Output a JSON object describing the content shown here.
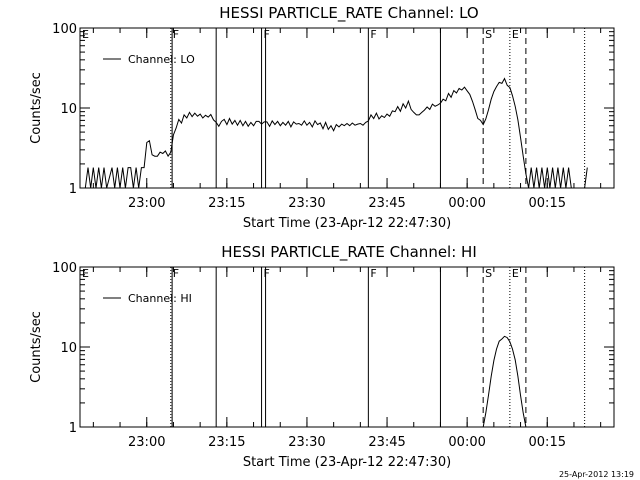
{
  "footer": {
    "date_stamp": "25-Apr-2012 13:19"
  },
  "colors": {
    "background": "#ffffff",
    "foreground": "#000000"
  },
  "chart_data": [
    {
      "type": "line",
      "title": "HESSI PARTICLE_RATE Channel: LO",
      "xlabel": "Start Time (23-Apr-12 22:47:30)",
      "ylabel": "Counts/sec",
      "y_scale": "log",
      "ylim": [
        1,
        100
      ],
      "y_ticks": [
        {
          "v": 1,
          "label": "1"
        },
        {
          "v": 10,
          "label": "10"
        },
        {
          "v": 100,
          "label": "100"
        }
      ],
      "xlim": [
        "22:47:30",
        "00:27:30"
      ],
      "x_ticks": [
        {
          "t": "23:00",
          "label": "23:00"
        },
        {
          "t": "23:15",
          "label": "23:15"
        },
        {
          "t": "23:30",
          "label": "23:30"
        },
        {
          "t": "23:45",
          "label": "23:45"
        },
        {
          "t": "00:00",
          "label": "00:00"
        },
        {
          "t": "00:15",
          "label": "00:15"
        }
      ],
      "legend": {
        "position": "top-left",
        "entries": [
          "Channel: LO"
        ]
      },
      "markers": [
        {
          "t": "22:47:30",
          "style": "dotted",
          "label": "E"
        },
        {
          "t": "23:04:30",
          "style": "dotted",
          "label": "F"
        },
        {
          "t": "23:04:45",
          "style": "solid",
          "label": ""
        },
        {
          "t": "23:13:00",
          "style": "solid",
          "label": ""
        },
        {
          "t": "23:21:30",
          "style": "solid",
          "label": "F"
        },
        {
          "t": "23:22:15",
          "style": "solid",
          "label": ""
        },
        {
          "t": "23:41:30",
          "style": "solid",
          "label": "F"
        },
        {
          "t": "23:55:00",
          "style": "solid",
          "label": ""
        },
        {
          "t": "00:03:00",
          "style": "dashed",
          "label": "S"
        },
        {
          "t": "00:08:00",
          "style": "dotted",
          "label": "E"
        },
        {
          "t": "00:11:00",
          "style": "dashed",
          "label": ""
        },
        {
          "t": "00:22:00",
          "style": "dotted",
          "label": ""
        }
      ],
      "series": [
        {
          "name": "Channel: LO",
          "points": [
            [
              "22:48:30",
              1
            ],
            [
              "22:49:00",
              1.8
            ],
            [
              "22:49:30",
              1
            ],
            [
              "22:50:00",
              1.8
            ],
            [
              "22:50:30",
              1
            ],
            [
              "22:51:00",
              1.8
            ],
            [
              "22:51:30",
              1
            ],
            [
              "22:52:00",
              1.8
            ],
            [
              "22:52:30",
              1
            ],
            [
              "22:53:30",
              1.8
            ],
            [
              "22:54:00",
              1
            ],
            [
              "22:54:30",
              1.8
            ],
            [
              "22:55:00",
              1
            ],
            [
              "22:55:30",
              1.8
            ],
            [
              "22:56:00",
              1
            ],
            [
              "22:56:30",
              1.8
            ],
            [
              "22:57:00",
              1.8
            ],
            [
              "22:57:30",
              1
            ],
            [
              "22:58:00",
              1.8
            ],
            [
              "22:58:30",
              1
            ],
            [
              "22:59:00",
              1.8
            ],
            [
              "22:59:30",
              1.8
            ],
            [
              "23:00:00",
              3.7
            ],
            [
              "23:00:30",
              3.9
            ],
            [
              "23:01:00",
              2.6
            ],
            [
              "23:01:30",
              2.5
            ],
            [
              "23:02:00",
              2.5
            ],
            [
              "23:02:30",
              2.8
            ],
            [
              "23:03:00",
              2.7
            ],
            [
              "23:03:30",
              2.9
            ],
            [
              "23:04:00",
              2.5
            ],
            [
              "23:04:30",
              2.8
            ],
            [
              "23:05:00",
              4.6
            ],
            [
              "23:05:30",
              5.6
            ],
            [
              "23:06:00",
              7.2
            ],
            [
              "23:06:30",
              6.5
            ],
            [
              "23:07:00",
              8.2
            ],
            [
              "23:07:30",
              7.5
            ],
            [
              "23:08:00",
              8.8
            ],
            [
              "23:08:30",
              7.8
            ],
            [
              "23:09:00",
              8.6
            ],
            [
              "23:09:30",
              7.9
            ],
            [
              "23:10:00",
              8.4
            ],
            [
              "23:10:30",
              7.5
            ],
            [
              "23:11:00",
              8.1
            ],
            [
              "23:11:30",
              7.7
            ],
            [
              "23:12:00",
              8.3
            ],
            [
              "23:12:30",
              7.1
            ],
            [
              "23:13:00",
              6.6
            ],
            [
              "23:13:30",
              5.9
            ],
            [
              "23:14:00",
              6.8
            ],
            [
              "23:14:30",
              7.2
            ],
            [
              "23:15:00",
              6.2
            ],
            [
              "23:15:30",
              7.4
            ],
            [
              "23:16:00",
              6.3
            ],
            [
              "23:16:30",
              7.0
            ],
            [
              "23:17:00",
              6.1
            ],
            [
              "23:17:30",
              7.0
            ],
            [
              "23:18:00",
              6.0
            ],
            [
              "23:18:30",
              6.8
            ],
            [
              "23:19:00",
              5.9
            ],
            [
              "23:19:30",
              6.6
            ],
            [
              "23:20:00",
              6.0
            ],
            [
              "23:20:30",
              6.8
            ],
            [
              "23:21:00",
              6.8
            ],
            [
              "23:21:30",
              6.3
            ],
            [
              "23:22:00",
              6.7
            ],
            [
              "23:22:30",
              6.7
            ],
            [
              "23:23:00",
              5.9
            ],
            [
              "23:23:30",
              6.9
            ],
            [
              "23:24:00",
              6.2
            ],
            [
              "23:24:30",
              6.8
            ],
            [
              "23:25:00",
              6.0
            ],
            [
              "23:25:30",
              6.6
            ],
            [
              "23:26:00",
              6.1
            ],
            [
              "23:26:30",
              6.8
            ],
            [
              "23:27:00",
              5.8
            ],
            [
              "23:27:30",
              6.7
            ],
            [
              "23:28:00",
              6.3
            ],
            [
              "23:28:30",
              6.4
            ],
            [
              "23:29:00",
              6.1
            ],
            [
              "23:29:30",
              6.9
            ],
            [
              "23:30:00",
              6.1
            ],
            [
              "23:30:30",
              6.6
            ],
            [
              "23:31:00",
              5.8
            ],
            [
              "23:31:30",
              6.9
            ],
            [
              "23:32:00",
              6.2
            ],
            [
              "23:32:30",
              6.5
            ],
            [
              "23:33:00",
              5.5
            ],
            [
              "23:33:30",
              6.6
            ],
            [
              "23:34:00",
              5.4
            ],
            [
              "23:34:30",
              6.0
            ],
            [
              "23:35:00",
              5.2
            ],
            [
              "23:35:30",
              6.2
            ],
            [
              "23:36:00",
              5.8
            ],
            [
              "23:36:30",
              6.3
            ],
            [
              "23:37:00",
              6.0
            ],
            [
              "23:37:30",
              6.4
            ],
            [
              "23:38:00",
              6.0
            ],
            [
              "23:38:30",
              6.5
            ],
            [
              "23:39:00",
              6.1
            ],
            [
              "23:39:30",
              6.3
            ],
            [
              "23:40:00",
              6.4
            ],
            [
              "23:40:30",
              6.1
            ],
            [
              "23:41:00",
              6.6
            ],
            [
              "23:41:30",
              6.9
            ],
            [
              "23:42:00",
              8.2
            ],
            [
              "23:42:30",
              7.4
            ],
            [
              "23:43:00",
              8.6
            ],
            [
              "23:43:30",
              7.3
            ],
            [
              "23:44:00",
              8.0
            ],
            [
              "23:44:30",
              7.6
            ],
            [
              "23:45:00",
              8.4
            ],
            [
              "23:45:30",
              7.9
            ],
            [
              "23:46:00",
              9.2
            ],
            [
              "23:46:30",
              9.0
            ],
            [
              "23:47:00",
              10.4
            ],
            [
              "23:47:30",
              9.1
            ],
            [
              "23:48:00",
              11.3
            ],
            [
              "23:48:30",
              10.0
            ],
            [
              "23:49:00",
              12.2
            ],
            [
              "23:49:30",
              9.6
            ],
            [
              "23:50:00",
              8.8
            ],
            [
              "23:50:30",
              8.2
            ],
            [
              "23:51:00",
              8.2
            ],
            [
              "23:51:30",
              8.8
            ],
            [
              "23:52:00",
              9.4
            ],
            [
              "23:52:30",
              10.3
            ],
            [
              "23:53:00",
              9.6
            ],
            [
              "23:53:30",
              11.2
            ],
            [
              "23:54:00",
              10.5
            ],
            [
              "23:54:30",
              10.9
            ],
            [
              "23:55:00",
              11.5
            ],
            [
              "23:55:30",
              12.9
            ],
            [
              "23:56:00",
              12.3
            ],
            [
              "23:56:30",
              15.2
            ],
            [
              "23:57:00",
              13.6
            ],
            [
              "23:57:30",
              16.5
            ],
            [
              "23:58:00",
              15.4
            ],
            [
              "23:58:30",
              17.6
            ],
            [
              "23:59:00",
              16.8
            ],
            [
              "23:59:30",
              18.2
            ],
            [
              "00:00:00",
              16.4
            ],
            [
              "00:00:30",
              14.8
            ],
            [
              "00:01:00",
              12.1
            ],
            [
              "00:01:30",
              9.5
            ],
            [
              "00:02:00",
              7.4
            ],
            [
              "00:02:30",
              7.0
            ],
            [
              "00:03:00",
              6.2
            ],
            [
              "00:03:30",
              7.3
            ],
            [
              "00:04:00",
              9.5
            ],
            [
              "00:04:30",
              12.9
            ],
            [
              "00:05:00",
              16.1
            ],
            [
              "00:05:30",
              18.5
            ],
            [
              "00:06:00",
              20.9
            ],
            [
              "00:06:30",
              20.3
            ],
            [
              "00:07:00",
              23.3
            ],
            [
              "00:07:30",
              19.2
            ],
            [
              "00:08:00",
              18.0
            ],
            [
              "00:08:30",
              14.2
            ],
            [
              "00:09:00",
              10.5
            ],
            [
              "00:09:30",
              7.1
            ],
            [
              "00:10:00",
              4.3
            ],
            [
              "00:10:30",
              2.5
            ],
            [
              "00:11:00",
              1.5
            ],
            [
              "00:11:30",
              1.0
            ],
            [
              "00:12:00",
              1.8
            ],
            [
              "00:12:30",
              1.0
            ],
            [
              "00:13:00",
              1.8
            ],
            [
              "00:13:30",
              1.0
            ],
            [
              "00:14:00",
              1.8
            ],
            [
              "00:14:30",
              1.0
            ],
            [
              "00:15:00",
              1.8
            ],
            [
              "00:15:30",
              1.0
            ],
            [
              "00:16:00",
              1.8
            ],
            [
              "00:16:30",
              1.0
            ],
            [
              "00:17:00",
              1.8
            ],
            [
              "00:17:30",
              1.0
            ],
            [
              "00:18:00",
              1.8
            ],
            [
              "00:18:30",
              1.0
            ],
            [
              "00:19:00",
              1.8
            ],
            [
              "00:19:30",
              1.0
            ],
            [
              "00:22:00",
              1.0
            ],
            [
              "00:22:30",
              1.8
            ]
          ]
        }
      ]
    },
    {
      "type": "line",
      "title": "HESSI PARTICLE_RATE Channel: HI",
      "xlabel": "Start Time (23-Apr-12 22:47:30)",
      "ylabel": "Counts/sec",
      "y_scale": "log",
      "ylim": [
        1,
        100
      ],
      "y_ticks": [
        {
          "v": 1,
          "label": "1"
        },
        {
          "v": 10,
          "label": "10"
        },
        {
          "v": 100,
          "label": "100"
        }
      ],
      "xlim": [
        "22:47:30",
        "00:27:30"
      ],
      "x_ticks": [
        {
          "t": "23:00",
          "label": "23:00"
        },
        {
          "t": "23:15",
          "label": "23:15"
        },
        {
          "t": "23:30",
          "label": "23:30"
        },
        {
          "t": "23:45",
          "label": "23:45"
        },
        {
          "t": "00:00",
          "label": "00:00"
        },
        {
          "t": "00:15",
          "label": "00:15"
        }
      ],
      "legend": {
        "position": "top-left",
        "entries": [
          "Channel: HI"
        ]
      },
      "markers": [
        {
          "t": "22:47:30",
          "style": "dotted",
          "label": "E"
        },
        {
          "t": "23:04:30",
          "style": "dotted",
          "label": "F"
        },
        {
          "t": "23:04:45",
          "style": "solid",
          "label": ""
        },
        {
          "t": "23:13:00",
          "style": "solid",
          "label": ""
        },
        {
          "t": "23:21:30",
          "style": "solid",
          "label": "F"
        },
        {
          "t": "23:22:15",
          "style": "solid",
          "label": ""
        },
        {
          "t": "23:41:30",
          "style": "solid",
          "label": "F"
        },
        {
          "t": "23:55:00",
          "style": "solid",
          "label": ""
        },
        {
          "t": "00:03:00",
          "style": "dashed",
          "label": "S"
        },
        {
          "t": "00:08:00",
          "style": "dotted",
          "label": "E"
        },
        {
          "t": "00:11:00",
          "style": "dashed",
          "label": ""
        },
        {
          "t": "00:22:00",
          "style": "dotted",
          "label": ""
        }
      ],
      "series": [
        {
          "name": "Channel: HI",
          "points": [
            [
              "00:03:00",
              1.0
            ],
            [
              "00:03:30",
              1.5
            ],
            [
              "00:04:00",
              2.5
            ],
            [
              "00:04:30",
              4.3
            ],
            [
              "00:05:00",
              6.8
            ],
            [
              "00:05:30",
              9.4
            ],
            [
              "00:06:00",
              11.8
            ],
            [
              "00:06:30",
              12.6
            ],
            [
              "00:07:00",
              13.6
            ],
            [
              "00:07:30",
              13.1
            ],
            [
              "00:08:00",
              11.6
            ],
            [
              "00:08:30",
              9.4
            ],
            [
              "00:09:00",
              6.9
            ],
            [
              "00:09:30",
              4.3
            ],
            [
              "00:10:00",
              2.5
            ],
            [
              "00:10:30",
              1.5
            ],
            [
              "00:11:00",
              1.0
            ]
          ]
        }
      ]
    }
  ]
}
